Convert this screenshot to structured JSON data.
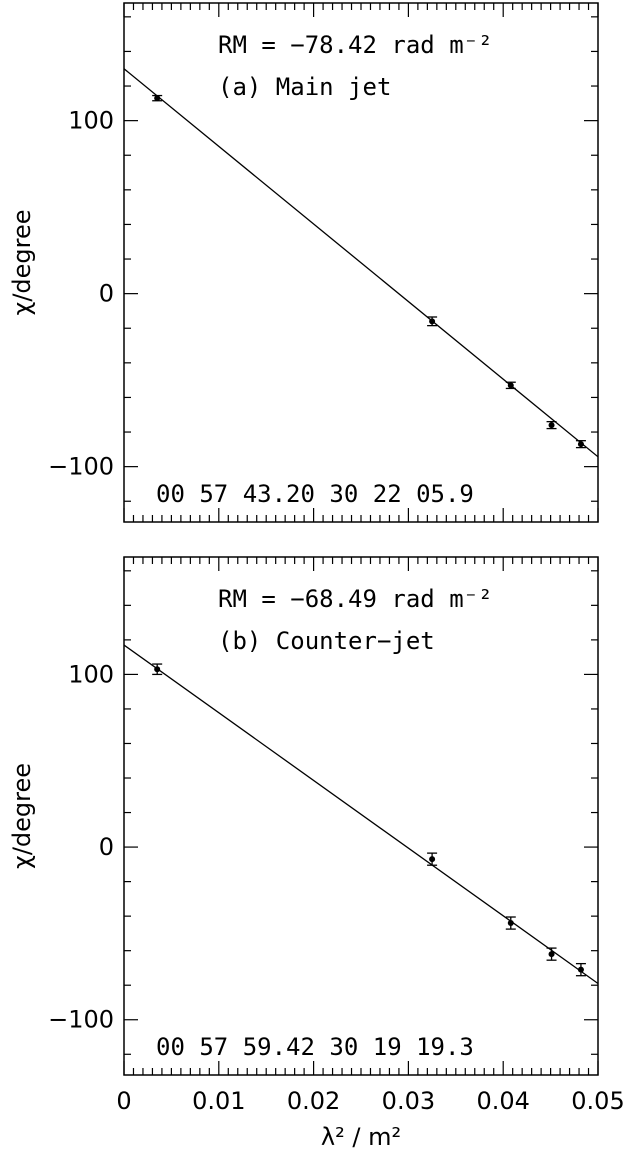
{
  "chart_data": [
    {
      "type": "scatter",
      "panel": "(a) Main jet",
      "annotation_rm": "RM = −78.42  rad m⁻²",
      "annotation_label": "(a) Main jet",
      "annotation_coords": "00 57 43.20   30 22 05.9",
      "ylabel": "χ/degree",
      "xlim": [
        0,
        0.05
      ],
      "ylim": [
        -132,
        168
      ],
      "yticks": [
        -100,
        0,
        100
      ],
      "ytick_labels": [
        "−100",
        "0",
        "100"
      ],
      "grid": false,
      "points": [
        {
          "x": 0.0035,
          "y": 113,
          "err": 1.5
        },
        {
          "x": 0.0325,
          "y": -16,
          "err": 2.5
        },
        {
          "x": 0.0408,
          "y": -53,
          "err": 1.8
        },
        {
          "x": 0.0451,
          "y": -76,
          "err": 2.0
        },
        {
          "x": 0.0482,
          "y": -87,
          "err": 2.0
        }
      ],
      "fit": {
        "intercept": 130,
        "slope": -4486
      }
    },
    {
      "type": "scatter",
      "panel": "(b) Counter-jet",
      "annotation_rm": "RM = −68.49  rad m⁻²",
      "annotation_label": "(b) Counter−jet",
      "annotation_coords": "00 57 59.42   30 19 19.3",
      "ylabel": "χ/degree",
      "xlabel": "λ² / m²",
      "xlim": [
        0,
        0.05
      ],
      "ylim": [
        -132,
        168
      ],
      "yticks": [
        -100,
        0,
        100
      ],
      "ytick_labels": [
        "−100",
        "0",
        "100"
      ],
      "xticks": [
        0,
        0.01,
        0.02,
        0.03,
        0.04,
        0.05
      ],
      "xtick_labels": [
        "0",
        "0.01",
        "0.02",
        "0.03",
        "0.04",
        "0.05"
      ],
      "grid": false,
      "points": [
        {
          "x": 0.0035,
          "y": 103,
          "err": 3.0
        },
        {
          "x": 0.0325,
          "y": -7,
          "err": 3.5
        },
        {
          "x": 0.0408,
          "y": -44,
          "err": 3.5
        },
        {
          "x": 0.0451,
          "y": -62,
          "err": 3.5
        },
        {
          "x": 0.0482,
          "y": -71,
          "err": 3.5
        }
      ],
      "fit": {
        "intercept": 117,
        "slope": -3920
      }
    }
  ]
}
